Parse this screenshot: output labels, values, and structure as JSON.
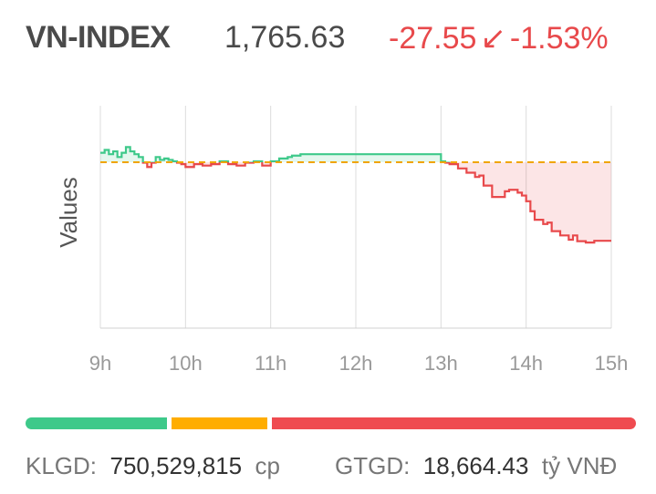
{
  "header": {
    "name": "VN-INDEX",
    "value": "1,765.63",
    "change": "-27.55",
    "arrow": "↙",
    "change_pct": "-1.53%"
  },
  "colors": {
    "up": "#3ec98a",
    "down": "#e8494b",
    "reference": "#f0a500",
    "text": "#4a4a4a",
    "bar_up": "#3ec98a",
    "bar_unchanged": "#ffad00",
    "bar_down": "#ef4b50"
  },
  "chart_data": {
    "type": "line",
    "ylabel": "Values",
    "x_tick_labels": [
      "9h",
      "10h",
      "11h",
      "12h",
      "13h",
      "14h",
      "15h"
    ],
    "x_ticks": [
      9,
      10,
      11,
      12,
      13,
      14,
      15
    ],
    "xlim": [
      9,
      15
    ],
    "reference": 1793.18,
    "ylim": [
      1735,
      1813
    ],
    "grid": true,
    "series": [
      {
        "x": [
          9.0,
          9.05,
          9.1,
          9.15,
          9.2,
          9.25,
          9.3,
          9.35,
          9.4,
          9.45,
          9.5,
          9.55,
          9.6,
          9.65,
          9.7,
          9.75,
          9.8,
          9.85,
          9.9,
          9.95,
          10.0,
          10.1,
          10.2,
          10.3,
          10.4,
          10.5,
          10.6,
          10.7,
          10.8,
          10.9,
          11.0,
          11.1,
          11.2,
          11.25,
          11.3,
          11.35,
          11.4,
          11.5,
          11.7,
          12.0,
          12.5,
          12.95,
          13.0,
          13.05,
          13.1,
          13.2,
          13.3,
          13.4,
          13.45,
          13.5,
          13.6,
          13.7,
          13.75,
          13.8,
          13.9,
          13.95,
          14.0,
          14.05,
          14.1,
          14.2,
          14.25,
          14.3,
          14.4,
          14.5,
          14.55,
          14.6,
          14.7,
          14.8,
          14.9,
          15.0
        ],
        "y": [
          1796.5,
          1797.5,
          1796.0,
          1797.0,
          1795.0,
          1796.5,
          1798.5,
          1797.0,
          1796.0,
          1795.0,
          1793.0,
          1791.5,
          1793.0,
          1795.0,
          1794.0,
          1794.5,
          1794.0,
          1793.5,
          1793.0,
          1792.5,
          1791.5,
          1792.5,
          1792.0,
          1792.5,
          1793.5,
          1792.5,
          1792.0,
          1793.0,
          1793.5,
          1792.0,
          1793.5,
          1794.5,
          1795.0,
          1795.5,
          1795.5,
          1796.0,
          1796.0,
          1796.0,
          1796.0,
          1796.0,
          1796.0,
          1796.0,
          1793.5,
          1793.0,
          1792.5,
          1791.0,
          1789.5,
          1788.0,
          1788.5,
          1785.0,
          1781.0,
          1781.0,
          1783.0,
          1783.5,
          1782.5,
          1781.5,
          1779.5,
          1776.0,
          1773.0,
          1771.5,
          1772.0,
          1769.0,
          1767.5,
          1766.0,
          1767.5,
          1765.5,
          1765.0,
          1765.63,
          1765.63,
          1765.63
        ]
      }
    ]
  },
  "breadth_bar": {
    "up": 0.235,
    "unchanged": 0.16,
    "down": 0.605
  },
  "footer": {
    "klgd_label": "KLGD:",
    "klgd_value": "750,529,815",
    "klgd_unit": "cp",
    "gtgd_label": "GTGD:",
    "gtgd_value": "18,664.43",
    "gtgd_unit": "tỷ VNĐ"
  }
}
